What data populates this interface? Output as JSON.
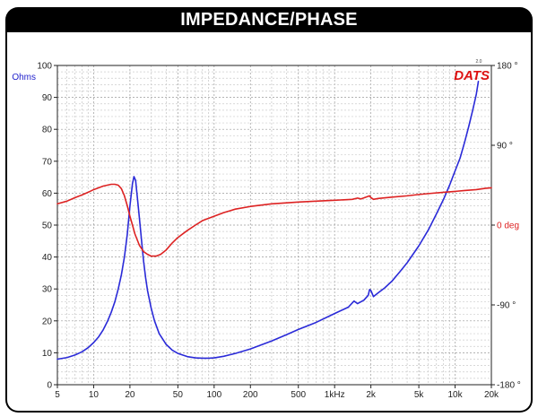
{
  "header": {
    "title": "IMPEDANCE/PHASE"
  },
  "logo": {
    "text": "DATS",
    "version": "2.0"
  },
  "chart_data": {
    "type": "line",
    "xscale": "log",
    "xlim": [
      5,
      20000
    ],
    "x_ticks": [
      {
        "v": 5,
        "label": "5"
      },
      {
        "v": 10,
        "label": "10"
      },
      {
        "v": 20,
        "label": "20"
      },
      {
        "v": 50,
        "label": "50"
      },
      {
        "v": 100,
        "label": "100"
      },
      {
        "v": 200,
        "label": "200"
      },
      {
        "v": 500,
        "label": "500"
      },
      {
        "v": 1000,
        "label": "1kHz"
      },
      {
        "v": 2000,
        "label": "2k"
      },
      {
        "v": 5000,
        "label": "5k"
      },
      {
        "v": 10000,
        "label": "10k"
      },
      {
        "v": 20000,
        "label": "20k"
      }
    ],
    "y_left": {
      "label": "Ohms",
      "color": "#2222cc",
      "lim": [
        0,
        100
      ],
      "ticks": [
        0,
        10,
        20,
        30,
        40,
        50,
        60,
        70,
        80,
        90,
        100
      ]
    },
    "y_right": {
      "lim": [
        -180,
        180
      ],
      "ticks": [
        {
          "v": 180,
          "label": "180 °"
        },
        {
          "v": 90,
          "label": "90 °"
        },
        {
          "v": 0,
          "label": "0 deg"
        },
        {
          "v": -90,
          "label": "-90 °"
        },
        {
          "v": -180,
          "label": "-180 °"
        }
      ],
      "color": "#dd2222"
    },
    "grid": true,
    "series": [
      {
        "axis": "left",
        "color": "#2a2ad8",
        "points": [
          [
            5,
            8
          ],
          [
            6,
            8.5
          ],
          [
            7,
            9.3
          ],
          [
            8,
            10.3
          ],
          [
            9,
            11.6
          ],
          [
            10,
            13.2
          ],
          [
            11,
            15
          ],
          [
            12,
            17.2
          ],
          [
            13,
            19.8
          ],
          [
            14,
            22.7
          ],
          [
            15,
            26
          ],
          [
            16,
            30
          ],
          [
            17,
            34.5
          ],
          [
            18,
            40
          ],
          [
            19,
            47
          ],
          [
            20,
            56
          ],
          [
            21,
            63
          ],
          [
            21.6,
            65.2
          ],
          [
            22.3,
            64
          ],
          [
            23,
            59
          ],
          [
            24,
            52
          ],
          [
            25,
            45
          ],
          [
            26,
            38.5
          ],
          [
            27,
            33.5
          ],
          [
            28,
            29.5
          ],
          [
            30,
            24
          ],
          [
            32,
            20
          ],
          [
            35,
            16
          ],
          [
            40,
            12.6
          ],
          [
            45,
            10.8
          ],
          [
            50,
            9.8
          ],
          [
            60,
            8.8
          ],
          [
            70,
            8.4
          ],
          [
            80,
            8.3
          ],
          [
            90,
            8.3
          ],
          [
            100,
            8.4
          ],
          [
            120,
            8.9
          ],
          [
            150,
            9.8
          ],
          [
            200,
            11.2
          ],
          [
            300,
            13.7
          ],
          [
            400,
            15.7
          ],
          [
            500,
            17.3
          ],
          [
            700,
            19.5
          ],
          [
            1000,
            22.3
          ],
          [
            1300,
            24.3
          ],
          [
            1450,
            26.2
          ],
          [
            1550,
            25.4
          ],
          [
            1750,
            26.5
          ],
          [
            1900,
            28
          ],
          [
            1950,
            29.8
          ],
          [
            2000,
            29.5
          ],
          [
            2100,
            27.6
          ],
          [
            2300,
            28.8
          ],
          [
            2600,
            30.3
          ],
          [
            3000,
            32.5
          ],
          [
            3500,
            35.5
          ],
          [
            4000,
            38.2
          ],
          [
            5000,
            43.5
          ],
          [
            6000,
            48.5
          ],
          [
            7000,
            53.5
          ],
          [
            8000,
            58
          ],
          [
            9000,
            62.5
          ],
          [
            10000,
            67
          ],
          [
            11000,
            71
          ],
          [
            12000,
            76
          ],
          [
            13000,
            81
          ],
          [
            14000,
            86
          ],
          [
            15000,
            91
          ],
          [
            15600,
            95
          ]
        ]
      },
      {
        "axis": "right",
        "color": "#dd2222",
        "points": [
          [
            5,
            24
          ],
          [
            6,
            27
          ],
          [
            7,
            31
          ],
          [
            8,
            34
          ],
          [
            9,
            37
          ],
          [
            10,
            40
          ],
          [
            12,
            44
          ],
          [
            14,
            46
          ],
          [
            15,
            46
          ],
          [
            16,
            45
          ],
          [
            17,
            41
          ],
          [
            18,
            33
          ],
          [
            19,
            22
          ],
          [
            20,
            10
          ],
          [
            21,
            0
          ],
          [
            22,
            -10
          ],
          [
            24,
            -23
          ],
          [
            26,
            -30
          ],
          [
            28,
            -33
          ],
          [
            30,
            -35
          ],
          [
            33,
            -35
          ],
          [
            36,
            -33
          ],
          [
            40,
            -28
          ],
          [
            45,
            -20
          ],
          [
            50,
            -14
          ],
          [
            60,
            -6
          ],
          [
            70,
            0
          ],
          [
            80,
            5
          ],
          [
            100,
            10
          ],
          [
            120,
            14
          ],
          [
            150,
            18
          ],
          [
            200,
            21
          ],
          [
            300,
            24
          ],
          [
            500,
            26
          ],
          [
            700,
            27
          ],
          [
            1000,
            28
          ],
          [
            1400,
            29
          ],
          [
            1550,
            30.5
          ],
          [
            1650,
            29.5
          ],
          [
            1950,
            33
          ],
          [
            2000,
            31
          ],
          [
            2100,
            29
          ],
          [
            2300,
            30
          ],
          [
            3000,
            31.5
          ],
          [
            4000,
            33
          ],
          [
            5000,
            34.5
          ],
          [
            6000,
            35.5
          ],
          [
            8000,
            37
          ],
          [
            10000,
            38
          ],
          [
            12000,
            39
          ],
          [
            15000,
            40
          ],
          [
            18000,
            41.5
          ],
          [
            20000,
            42
          ]
        ]
      }
    ]
  }
}
